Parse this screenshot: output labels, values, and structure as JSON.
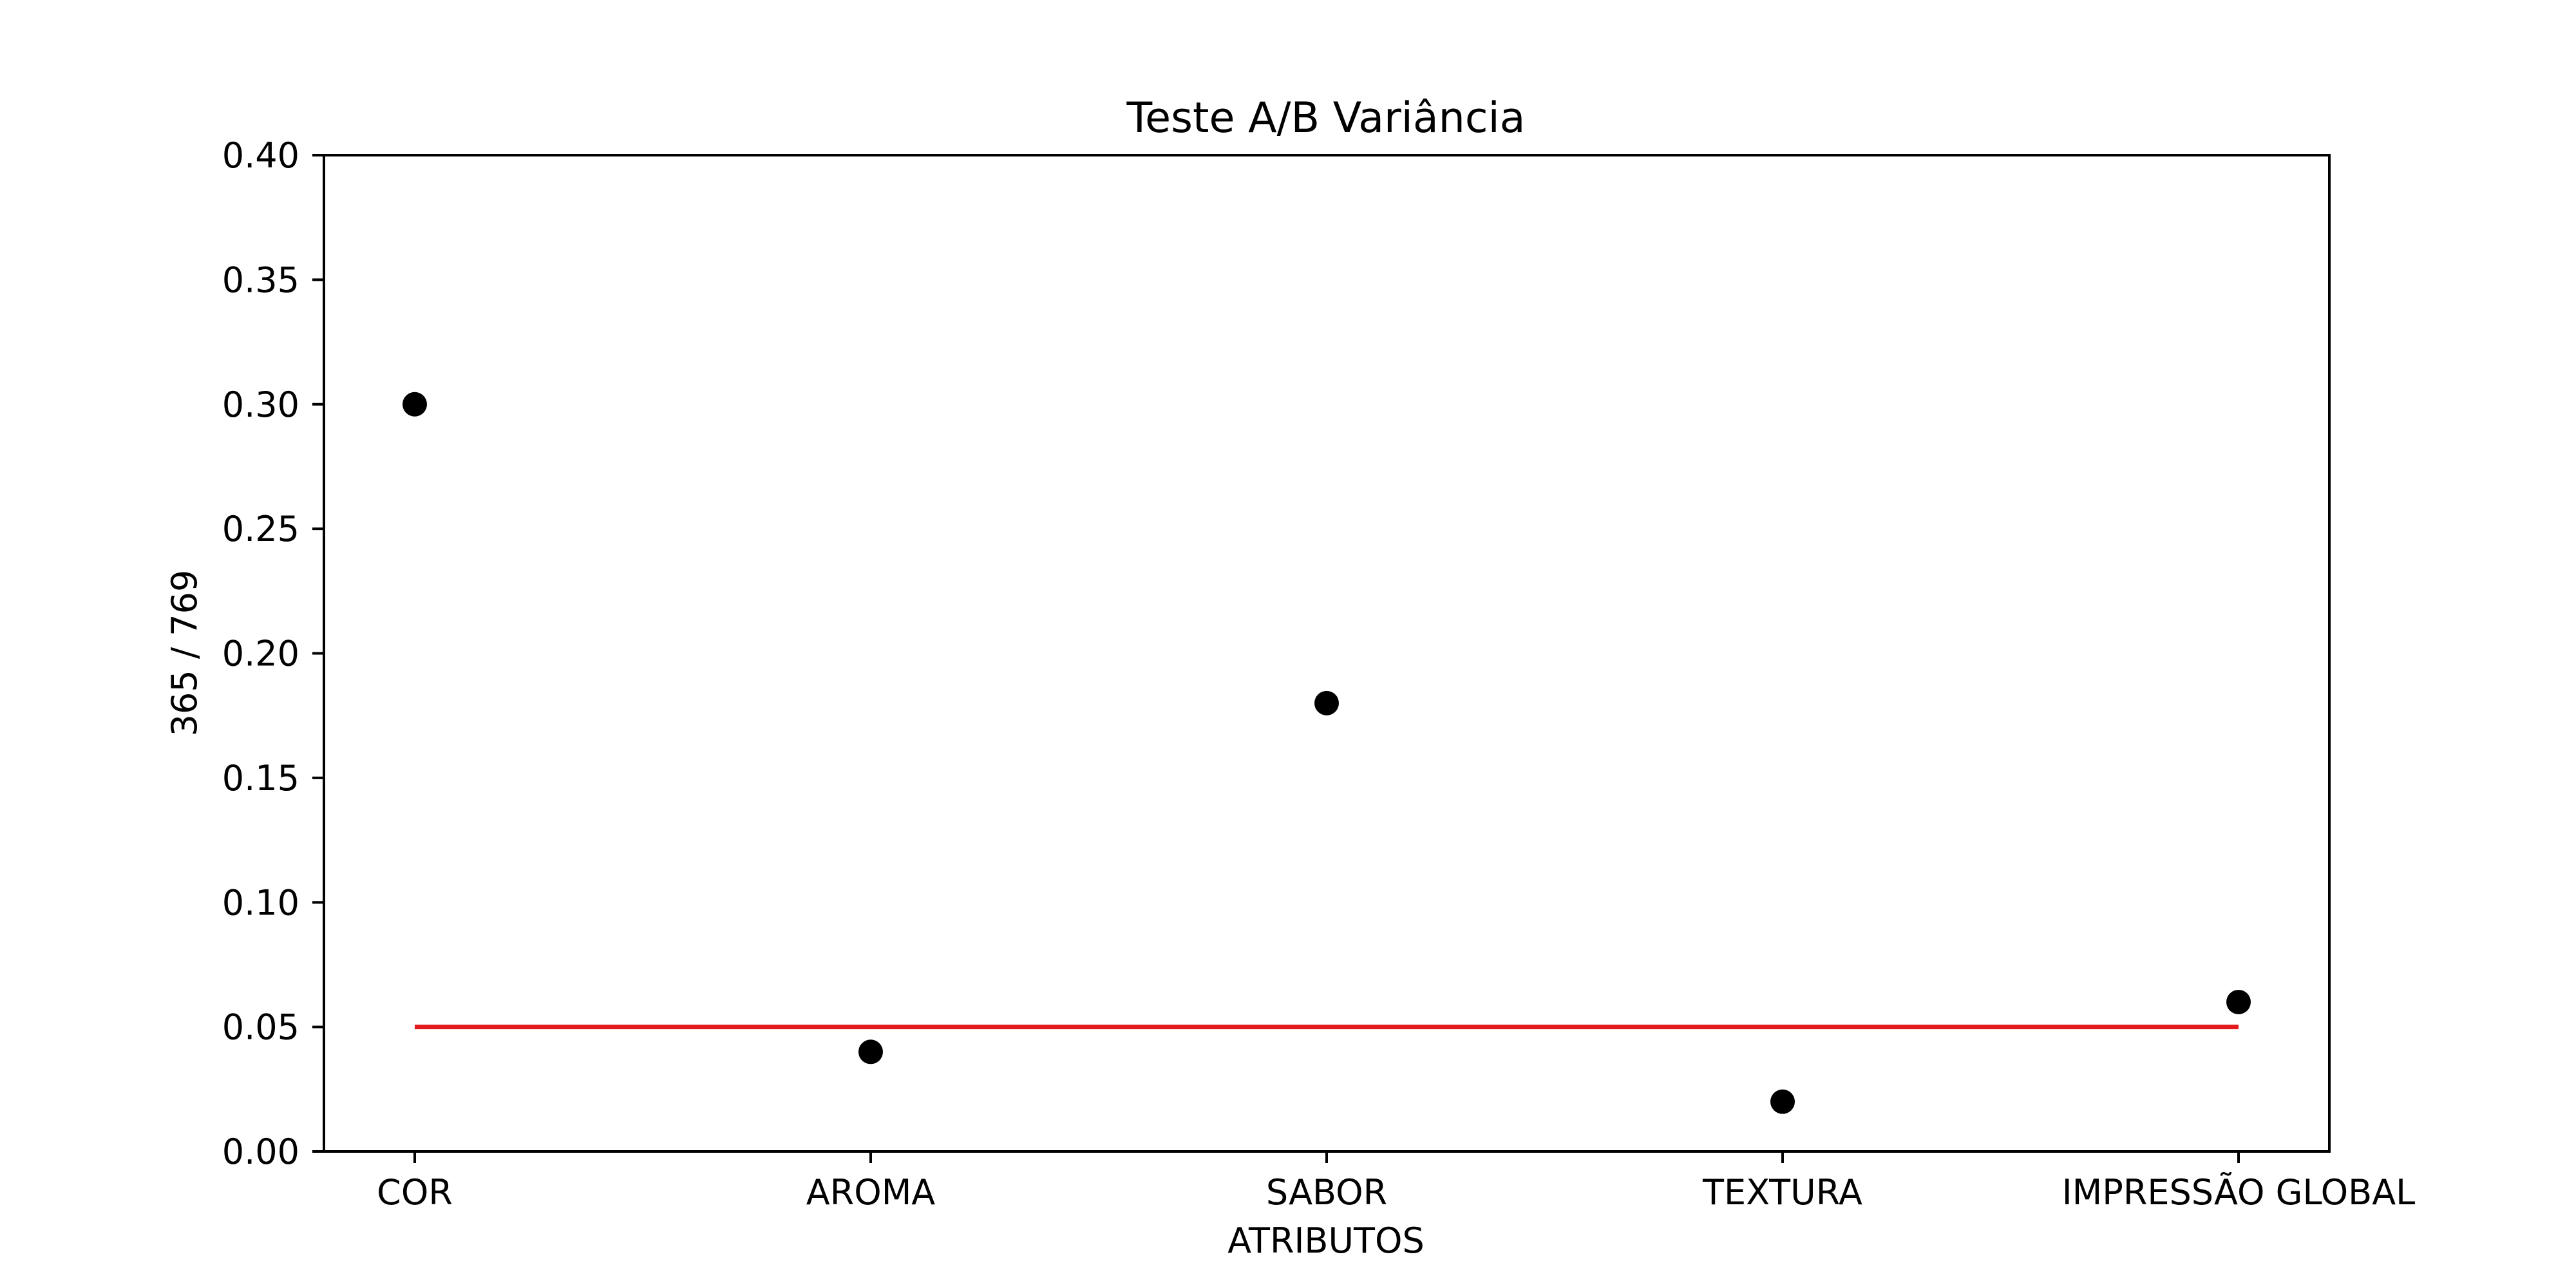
{
  "chart_data": {
    "type": "scatter",
    "title": "Teste A/B Variância",
    "xlabel": "ATRIBUTOS",
    "ylabel": "365 / 769",
    "categories": [
      "COR",
      "AROMA",
      "SABOR",
      "TEXTURA",
      "IMPRESSÃO GLOBAL"
    ],
    "values": [
      0.3,
      0.04,
      0.18,
      0.02,
      0.06
    ],
    "ylim": [
      0,
      0.4
    ],
    "yticks": [
      "0.00",
      "0.05",
      "0.10",
      "0.15",
      "0.20",
      "0.25",
      "0.30",
      "0.35",
      "0.40"
    ],
    "reference_line": {
      "y": 0.05,
      "color": "#e31a1c"
    },
    "marker_color": "#000000",
    "grid": false,
    "legend": "none"
  }
}
